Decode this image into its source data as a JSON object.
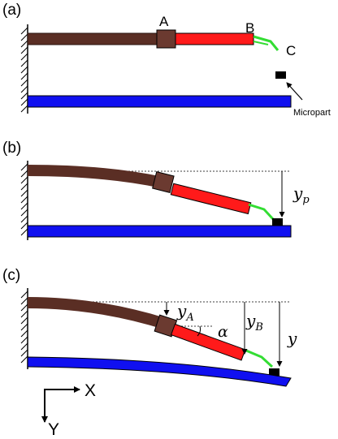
{
  "panels": [
    {
      "label": "(a)",
      "point_labels": {
        "A": "A",
        "B": "B",
        "C": "C"
      },
      "micropart_label": "Micropart"
    },
    {
      "label": "(b)",
      "dim_y": {
        "base": "y",
        "sub": "p"
      }
    },
    {
      "label": "(c)",
      "dim_ya": {
        "base": "y",
        "sub": "A"
      },
      "dim_yb": {
        "base": "y",
        "sub": "B"
      },
      "dim_y": "y",
      "angle": "α"
    }
  ],
  "axes": {
    "x": "X",
    "y": "Y"
  },
  "colors": {
    "beam": "#5a2e24",
    "joint": "#6b3a30",
    "link": "#ff1a1a",
    "gripper": "#33dd33",
    "surface": "#1010f0",
    "micropart": "#000000"
  }
}
